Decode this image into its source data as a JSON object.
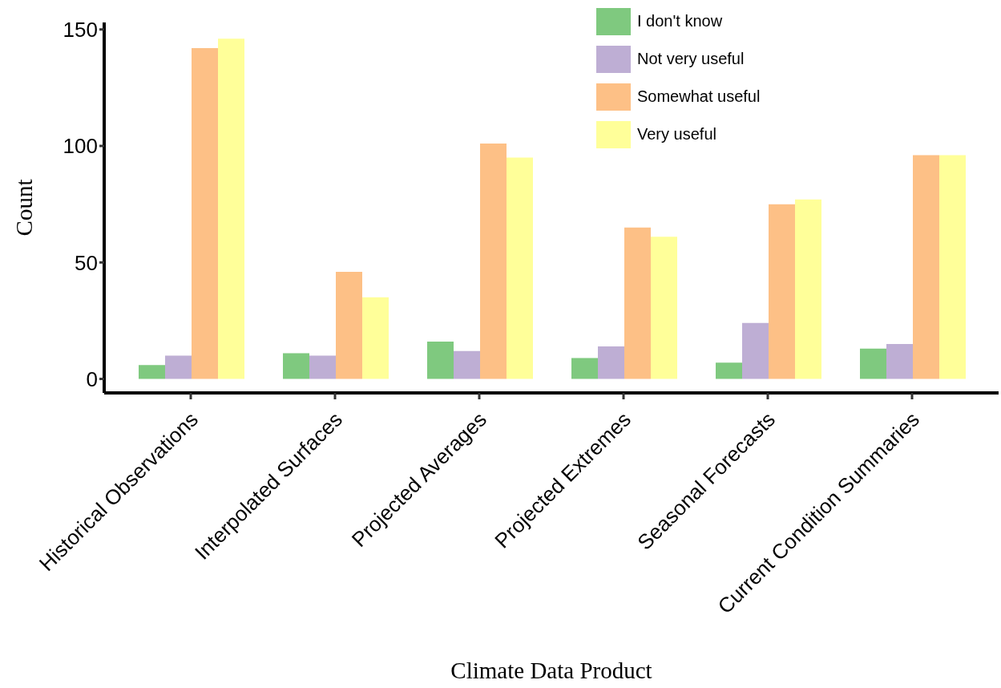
{
  "chart_data": {
    "type": "bar",
    "xlabel": "Climate Data Product",
    "ylabel": "Count",
    "categories": [
      "Historical Observations",
      "Interpolated Surfaces",
      "Projected Averages",
      "Projected Extremes",
      "Seasonal Forecasts",
      "Current Condition Summaries"
    ],
    "series": [
      {
        "name": "I don't know",
        "color": "#7fc97f",
        "values": [
          6,
          11,
          16,
          9,
          7,
          13
        ]
      },
      {
        "name": "Not very useful",
        "color": "#beaed4",
        "values": [
          10,
          10,
          12,
          14,
          24,
          15
        ]
      },
      {
        "name": "Somewhat useful",
        "color": "#fdc086",
        "values": [
          142,
          46,
          101,
          65,
          75,
          96
        ]
      },
      {
        "name": "Very useful",
        "color": "#ffff99",
        "values": [
          146,
          35,
          95,
          61,
          77,
          96
        ]
      }
    ],
    "ylim": [
      -6,
      153
    ],
    "yticks": [
      0,
      50,
      100,
      150
    ],
    "grid": false,
    "legend": "top right"
  }
}
